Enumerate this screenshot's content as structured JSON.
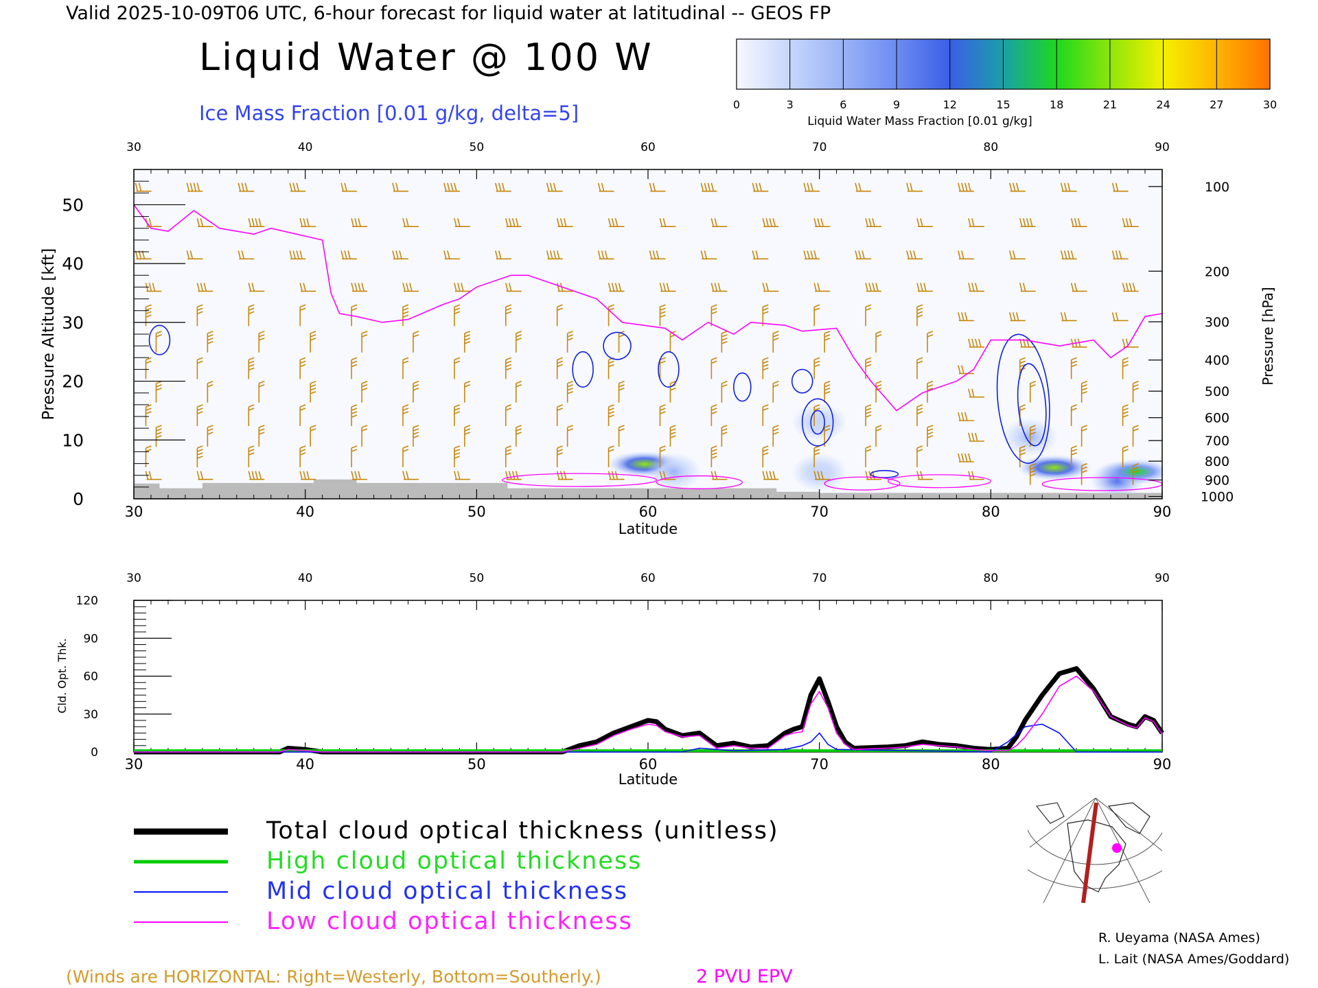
{
  "header": {
    "valid_line": "Valid 2025-10-09T06 UTC, 6-hour forecast for liquid water at latitudinal -- GEOS FP",
    "title": "Liquid Water @ 100 W",
    "ice_label": "Ice Mass Fraction [0.01 g/kg, delta=5]"
  },
  "colorbar": {
    "ticks": [
      "0",
      "3",
      "6",
      "9",
      "12",
      "15",
      "18",
      "21",
      "24",
      "27",
      "30"
    ],
    "label": "Liquid Water Mass Fraction [0.01 g/kg]",
    "colors": [
      "#f6f8ff",
      "#c6d6fb",
      "#9ab3f7",
      "#6c8cf1",
      "#3a5ee6",
      "#1aa0a6",
      "#1ed81e",
      "#8de60a",
      "#f4f000",
      "#ffb400",
      "#ff7200",
      "#ff2a00"
    ]
  },
  "colors": {
    "wind_barb": "#c8860a",
    "epv_line": "#ff00ff",
    "ice_contour": "#1020e0",
    "terrain": "#bbbbbb",
    "panel_bg": "#f7f9ff",
    "total_cloud": "#000000",
    "high_cloud": "#00cc00",
    "mid_cloud": "#0010ff",
    "low_cloud": "#ff00ff"
  },
  "chart_data": [
    {
      "type": "heatmap",
      "xlabel": "Latitude",
      "ylabel": "Pressure Altitude [kft]",
      "y2label": "Pressure [hPa]",
      "xlim": [
        30,
        90
      ],
      "ylim": [
        0,
        56
      ],
      "x_ticks": [
        "30",
        "40",
        "50",
        "60",
        "70",
        "80",
        "90"
      ],
      "y_ticks": [
        "0",
        "10",
        "20",
        "30",
        "40",
        "50"
      ],
      "pressure_ticks": [
        {
          "label": "100",
          "kft": 53.1
        },
        {
          "label": "200",
          "kft": 38.7
        },
        {
          "label": "300",
          "kft": 30.1
        },
        {
          "label": "400",
          "kft": 23.6
        },
        {
          "label": "500",
          "kft": 18.3
        },
        {
          "label": "600",
          "kft": 13.8
        },
        {
          "label": "700",
          "kft": 9.9
        },
        {
          "label": "800",
          "kft": 6.4
        },
        {
          "label": "900",
          "kft": 3.2
        },
        {
          "label": "1000",
          "kft": 0.4
        }
      ],
      "liquid_water_blobs": [
        {
          "lat": 59.8,
          "kft": 5.9,
          "value": 18
        },
        {
          "lat": 61.5,
          "kft": 4.6,
          "value": 6
        },
        {
          "lat": 70.0,
          "kft": 4.5,
          "value": 4
        },
        {
          "lat": 83.7,
          "kft": 5.3,
          "value": 19
        },
        {
          "lat": 82.3,
          "kft": 10.5,
          "value": 6
        },
        {
          "lat": 87.4,
          "kft": 3.2,
          "value": 10
        },
        {
          "lat": 88.5,
          "kft": 4.6,
          "value": 16
        },
        {
          "lat": 70.0,
          "kft": 13.0,
          "value": 3
        }
      ],
      "epv_2pvu": [
        [
          30,
          50
        ],
        [
          31,
          46
        ],
        [
          32,
          45.5
        ],
        [
          33.5,
          49
        ],
        [
          35,
          46
        ],
        [
          37,
          45
        ],
        [
          38,
          46
        ],
        [
          39.5,
          45
        ],
        [
          41,
          44
        ],
        [
          41.5,
          35
        ],
        [
          42,
          31.5
        ],
        [
          43,
          31
        ],
        [
          44.5,
          30
        ],
        [
          46,
          30.5
        ],
        [
          48,
          33
        ],
        [
          49,
          34
        ],
        [
          50,
          36
        ],
        [
          52,
          38
        ],
        [
          53,
          38
        ],
        [
          55,
          36
        ],
        [
          57,
          34
        ],
        [
          58.5,
          30
        ],
        [
          61,
          29
        ],
        [
          62,
          27
        ],
        [
          63.5,
          30
        ],
        [
          65,
          28
        ],
        [
          66,
          30
        ],
        [
          68,
          29.5
        ],
        [
          69,
          28.5
        ],
        [
          71,
          29
        ],
        [
          72,
          24
        ],
        [
          73,
          20
        ],
        [
          74.5,
          15
        ],
        [
          76,
          18
        ],
        [
          78,
          20
        ],
        [
          79,
          22
        ],
        [
          80,
          27
        ],
        [
          82,
          27
        ],
        [
          84,
          26
        ],
        [
          86,
          27
        ],
        [
          87,
          24
        ],
        [
          88,
          26
        ],
        [
          89,
          31
        ],
        [
          90,
          31.5
        ]
      ],
      "ice_contours": [
        {
          "lat": 31.5,
          "kft": 27,
          "rx": 0.6,
          "ry": 2.5,
          "angle": 0
        },
        {
          "lat": 56.2,
          "kft": 22,
          "rx": 0.6,
          "ry": 3.0,
          "angle": 0
        },
        {
          "lat": 58.2,
          "kft": 26,
          "rx": 0.8,
          "ry": 2.3,
          "angle": 10
        },
        {
          "lat": 61.2,
          "kft": 22,
          "rx": 0.6,
          "ry": 3.0,
          "angle": 0
        },
        {
          "lat": 65.5,
          "kft": 19,
          "rx": 0.5,
          "ry": 2.4,
          "angle": 0
        },
        {
          "lat": 69.0,
          "kft": 20,
          "rx": 0.6,
          "ry": 2.0,
          "angle": 0
        },
        {
          "lat": 69.9,
          "kft": 13,
          "rx": 0.9,
          "ry": 4.0,
          "angle": 0
        },
        {
          "lat": 69.9,
          "kft": 13,
          "rx": 0.4,
          "ry": 2.0,
          "angle": 0
        },
        {
          "lat": 81.9,
          "kft": 17,
          "rx": 1.5,
          "ry": 11,
          "angle": -5
        },
        {
          "lat": 82.4,
          "kft": 16,
          "rx": 0.8,
          "ry": 7,
          "angle": -5
        },
        {
          "lat": 73.8,
          "kft": 4.2,
          "rx": 0.8,
          "ry": 0.6,
          "angle": 0
        }
      ],
      "terrain_kft": [
        [
          30,
          2.6
        ],
        [
          31.5,
          2.6
        ],
        [
          31.5,
          1.8
        ],
        [
          34,
          1.8
        ],
        [
          34,
          2.7
        ],
        [
          40.5,
          2.7
        ],
        [
          40.5,
          3.3
        ],
        [
          43,
          3.3
        ],
        [
          43,
          2.7
        ],
        [
          51.8,
          2.7
        ],
        [
          51.8,
          1.8
        ],
        [
          67.5,
          1.8
        ],
        [
          67.5,
          1.2
        ],
        [
          70,
          1.2
        ],
        [
          70,
          1.0
        ],
        [
          90,
          1.0
        ]
      ],
      "note": "(Winds are HORIZONTAL: Right=Westerly, Bottom=Southerly.)",
      "epv_label": "2 PVU EPV"
    },
    {
      "type": "line",
      "xlabel": "Latitude",
      "ylabel": "Cld. Opt. Thk.",
      "xlim": [
        30,
        90
      ],
      "ylim": [
        0,
        120
      ],
      "x_ticks": [
        "30",
        "40",
        "50",
        "60",
        "70",
        "80",
        "90"
      ],
      "y_ticks": [
        "0",
        "30",
        "60",
        "90",
        "120"
      ],
      "series": [
        {
          "name": "Total cloud optical thickness (unitless)",
          "x": [
            30,
            38.5,
            39,
            40,
            41,
            55,
            56,
            57,
            58,
            59,
            60,
            60.5,
            61,
            62,
            63,
            63.5,
            64,
            65,
            66,
            67,
            67.5,
            68,
            68.5,
            69,
            69.5,
            70,
            70.5,
            71,
            71.5,
            72,
            74,
            75,
            76,
            77,
            78,
            79,
            80,
            81,
            81.5,
            82,
            83,
            84,
            85,
            86,
            87,
            88,
            88.5,
            89,
            89.5,
            90
          ],
          "y": [
            0,
            0,
            3,
            2,
            0,
            0,
            5,
            8,
            15,
            20,
            25,
            24,
            18,
            13,
            15,
            10,
            5,
            7,
            4,
            5,
            10,
            15,
            18,
            20,
            45,
            58,
            40,
            20,
            8,
            3,
            4,
            5,
            8,
            6,
            5,
            3,
            2,
            3,
            12,
            25,
            45,
            62,
            66,
            50,
            28,
            22,
            20,
            28,
            25,
            15
          ]
        },
        {
          "name": "High cloud optical thickness",
          "x": [
            30,
            90
          ],
          "y": [
            1,
            1
          ]
        },
        {
          "name": "Mid cloud optical thickness",
          "x": [
            30,
            55,
            62,
            63,
            65,
            68,
            69,
            69.5,
            70,
            70.5,
            71,
            80,
            81,
            82,
            83,
            84,
            85,
            90
          ],
          "y": [
            0,
            0,
            0,
            3,
            1,
            2,
            5,
            8,
            15,
            6,
            2,
            0,
            8,
            20,
            22,
            15,
            0,
            0
          ]
        },
        {
          "name": "Low cloud optical thickness",
          "x": [
            30,
            38.5,
            39,
            40,
            41,
            55,
            56,
            57,
            58,
            59,
            60,
            60.5,
            61,
            62,
            63,
            63.5,
            64,
            65,
            66,
            67,
            67.5,
            68,
            68.5,
            69,
            69.5,
            70,
            70.5,
            71,
            71.5,
            72,
            74,
            75,
            76,
            77,
            78,
            79,
            80,
            81,
            81.5,
            82,
            83,
            84,
            85,
            86,
            87,
            88,
            88.5,
            89,
            89.5,
            90
          ],
          "y": [
            0,
            0,
            2,
            1,
            0,
            0,
            3,
            6,
            13,
            18,
            22,
            21,
            16,
            12,
            13,
            8,
            3,
            5,
            3,
            3,
            8,
            13,
            15,
            16,
            38,
            48,
            35,
            15,
            6,
            2,
            3,
            4,
            6,
            5,
            4,
            2,
            1,
            1,
            5,
            12,
            30,
            52,
            60,
            48,
            28,
            21,
            19,
            27,
            24,
            14
          ]
        }
      ]
    }
  ],
  "credits": {
    "line1": "R. Ueyama (NASA Ames)",
    "line2": "L. Lait (NASA Ames/Goddard)"
  }
}
